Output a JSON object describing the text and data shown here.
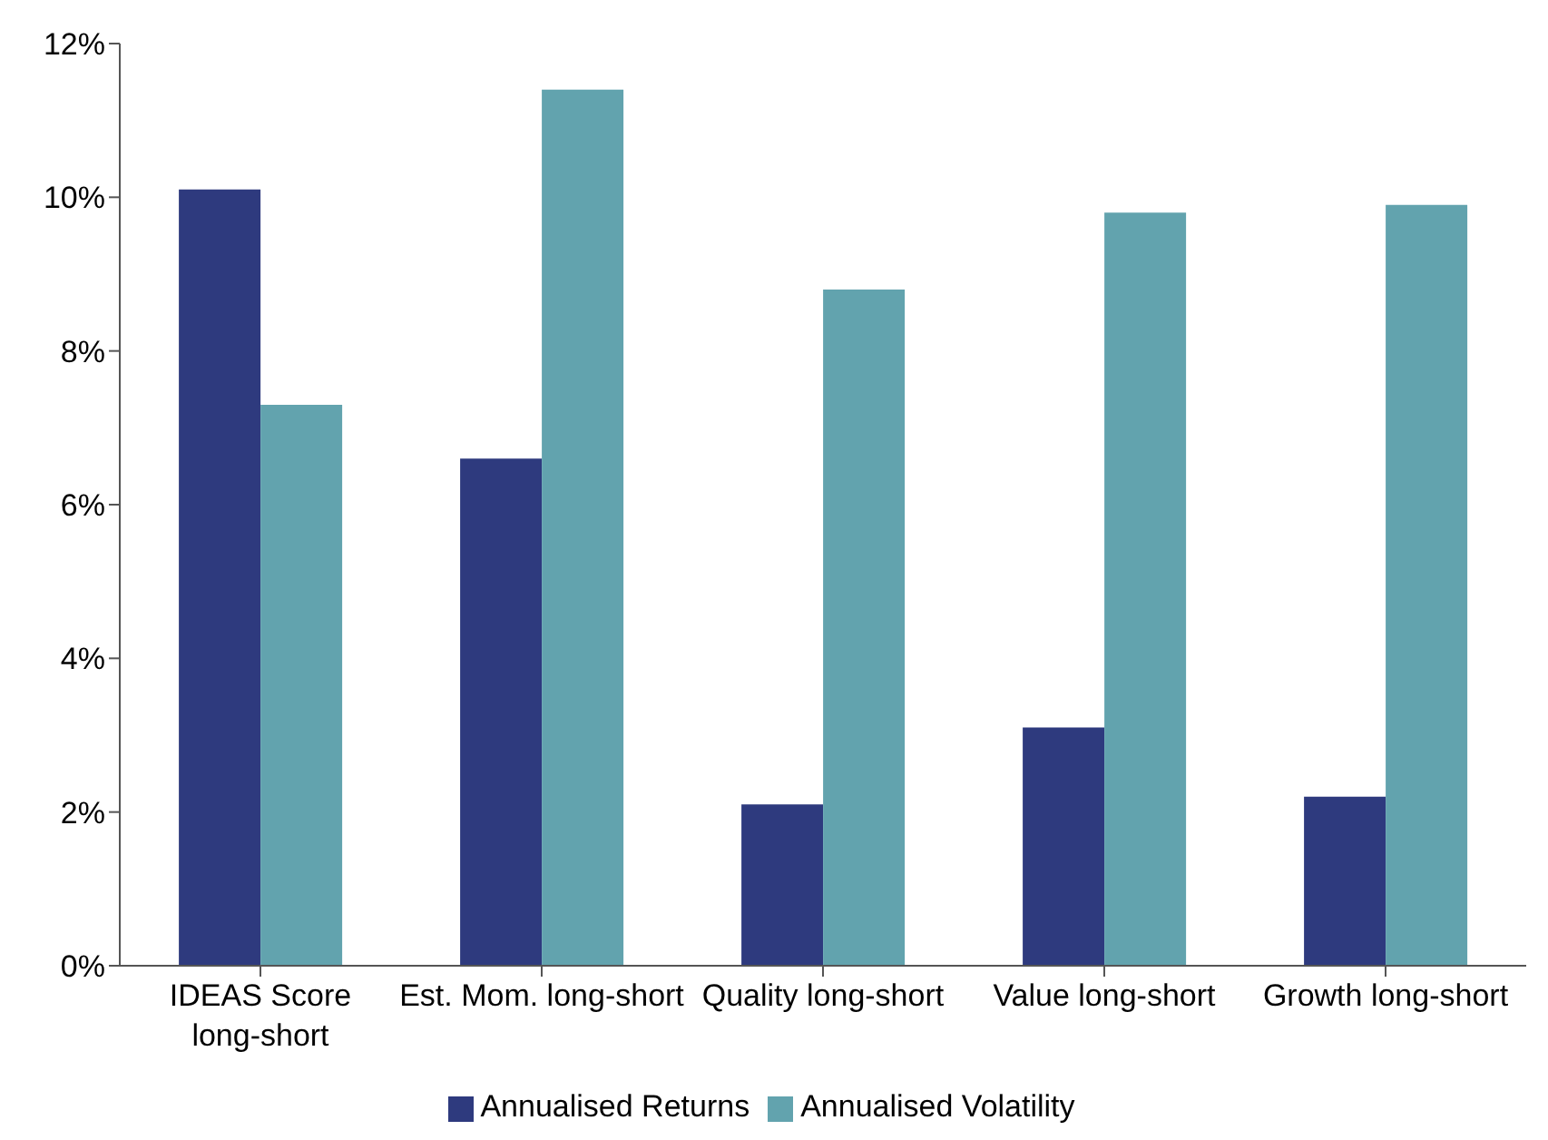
{
  "chart_data": {
    "type": "bar",
    "categories": [
      "IDEAS Score long-short",
      "Est. Mom. long-short",
      "Quality long-short",
      "Value long-short",
      "Growth long-short"
    ],
    "series": [
      {
        "name": "Annualised Returns",
        "color": "#2e3a7e",
        "values": [
          10.1,
          6.6,
          2.1,
          3.1,
          2.2
        ]
      },
      {
        "name": "Annualised Volatility",
        "color": "#62a3ae",
        "values": [
          7.3,
          11.4,
          8.8,
          9.8,
          9.9
        ]
      }
    ],
    "ylim": [
      0,
      12
    ],
    "yticks": [
      {
        "value": 0,
        "label": "0%"
      },
      {
        "value": 2,
        "label": "2%"
      },
      {
        "value": 4,
        "label": "4%"
      },
      {
        "value": 6,
        "label": "6%"
      },
      {
        "value": 8,
        "label": "8%"
      },
      {
        "value": 10,
        "label": "10%"
      },
      {
        "value": 12,
        "label": "12%"
      }
    ],
    "grid": false,
    "legend": "bottom"
  }
}
